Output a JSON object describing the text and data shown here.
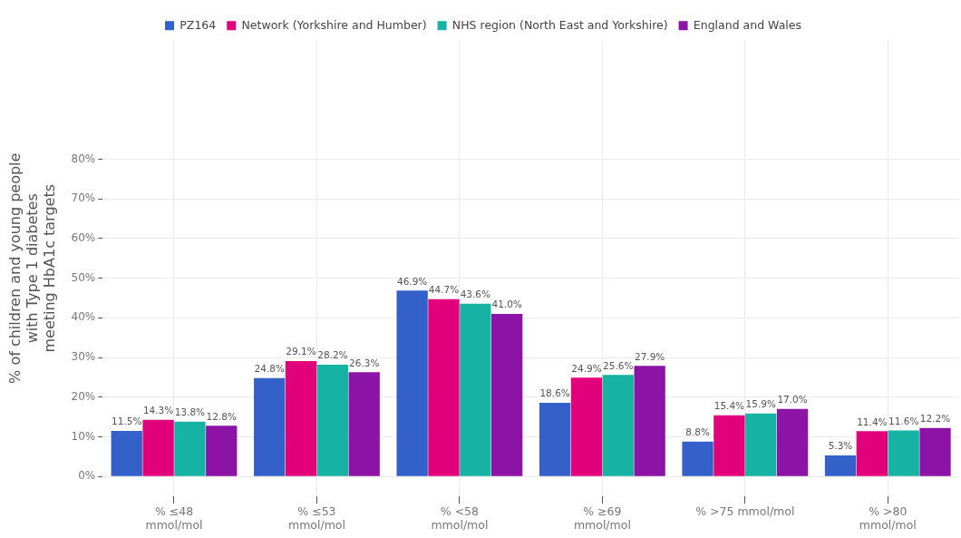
{
  "chart_data": {
    "type": "bar",
    "categories": [
      "% ≤48\nmmol/mol",
      "% ≤53\nmmol/mol",
      "% <58\nmmol/mol",
      "% ≥69\nmmol/mol",
      "% >75 mmol/mol",
      "% >80\nmmol/mol"
    ],
    "ylabel": "% of children and young people\nwith Type 1 diabetes\nmeeting HbA1c targets",
    "series": [
      {
        "name": "PZ164",
        "color": "#3461c9",
        "values": [
          11.5,
          24.8,
          46.9,
          18.6,
          8.8,
          5.3
        ],
        "value_labels": [
          "11.5%",
          "24.8%",
          "46.9%",
          "18.6%",
          "8.8%",
          "5.3%"
        ]
      },
      {
        "name": "Network (Yorkshire and Humber)",
        "color": "#e2007a",
        "values": [
          14.3,
          29.1,
          44.7,
          24.9,
          15.4,
          11.4
        ],
        "value_labels": [
          "14.3%",
          "29.1%",
          "44.7%",
          "24.9%",
          "15.4%",
          "11.4%"
        ]
      },
      {
        "name": "NHS region (North East and Yorkshire)",
        "color": "#16b2a3",
        "values": [
          13.8,
          28.2,
          43.6,
          25.6,
          15.9,
          11.6
        ],
        "value_labels": [
          "13.8%",
          "28.2%",
          "43.6%",
          "25.6%",
          "15.9%",
          "11.6%"
        ]
      },
      {
        "name": "England and Wales",
        "color": "#8b14a6",
        "values": [
          12.8,
          26.3,
          41.0,
          27.9,
          17.0,
          12.2
        ],
        "value_labels": [
          "12.8%",
          "26.3%",
          "41.0%",
          "27.9%",
          "17.0%",
          "12.2%"
        ]
      }
    ],
    "ylim": [
      -5,
      110
    ],
    "yticks": [
      {
        "value": 0,
        "label": "0%"
      },
      {
        "value": 10,
        "label": "10%"
      },
      {
        "value": 20,
        "label": "20%"
      },
      {
        "value": 30,
        "label": "30%"
      },
      {
        "value": 40,
        "label": "40%"
      },
      {
        "value": 50,
        "label": "50%"
      },
      {
        "value": 60,
        "label": "60%"
      },
      {
        "value": 70,
        "label": "70%"
      },
      {
        "value": 80,
        "label": "80%"
      }
    ],
    "grid": true,
    "legend": "top"
  }
}
